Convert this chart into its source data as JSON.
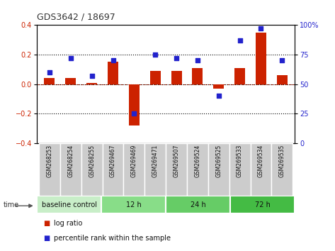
{
  "title": "GDS3642 / 18697",
  "samples": [
    "GSM268253",
    "GSM268254",
    "GSM268255",
    "GSM269467",
    "GSM269469",
    "GSM269471",
    "GSM269507",
    "GSM269524",
    "GSM269525",
    "GSM269533",
    "GSM269534",
    "GSM269535"
  ],
  "log_ratio": [
    0.04,
    0.04,
    0.01,
    0.15,
    -0.28,
    0.09,
    0.09,
    0.11,
    -0.03,
    0.11,
    0.35,
    0.06
  ],
  "percentile_rank": [
    60,
    72,
    57,
    70,
    25,
    75,
    72,
    70,
    40,
    87,
    97,
    70
  ],
  "left_ylim": [
    -0.4,
    0.4
  ],
  "left_yticks": [
    -0.4,
    -0.2,
    0.0,
    0.2,
    0.4
  ],
  "right_ylim": [
    0,
    100
  ],
  "right_yticks": [
    0,
    25,
    50,
    75,
    100
  ],
  "bar_color": "#cc2200",
  "scatter_color": "#2222cc",
  "groups": [
    {
      "label": "baseline control",
      "start": 0,
      "end": 3,
      "color": "#c8eec8"
    },
    {
      "label": "12 h",
      "start": 3,
      "end": 6,
      "color": "#88dd88"
    },
    {
      "label": "24 h",
      "start": 6,
      "end": 9,
      "color": "#66cc66"
    },
    {
      "label": "72 h",
      "start": 9,
      "end": 12,
      "color": "#44bb44"
    }
  ],
  "legend_items": [
    {
      "label": "log ratio",
      "color": "#cc2200"
    },
    {
      "label": "percentile rank within the sample",
      "color": "#2222cc"
    }
  ],
  "bg_color": "#ffffff",
  "sample_bg": "#cccccc"
}
